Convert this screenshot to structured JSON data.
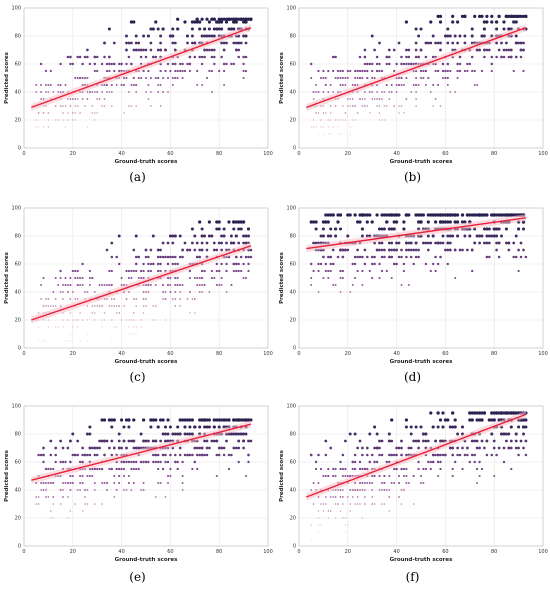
{
  "colors": {
    "low": "#f2b8c6",
    "mid": "#8a4c96",
    "high": "#2b2150",
    "trend": "#e8203a",
    "band": "#f5c0c8",
    "grid": "#e6e6e6"
  },
  "chart_data": [
    {
      "panel": "(a)",
      "type": "scatter",
      "xlabel": "Ground-truth scores",
      "ylabel": "Predicted scores",
      "xlim": [
        0,
        100
      ],
      "ylim": [
        0,
        100
      ],
      "xticks": [
        "0",
        "20",
        "40",
        "60",
        "80",
        "100"
      ],
      "yticks": [
        "0",
        "20",
        "40",
        "60",
        "80",
        "100"
      ],
      "trend": {
        "x": [
          3,
          93
        ],
        "y": [
          29,
          86
        ]
      },
      "cloud": {
        "xrange": [
          5,
          93
        ],
        "ymin": 15,
        "ymax": 92
      },
      "grid": true
    },
    {
      "panel": "(b)",
      "type": "scatter",
      "xlabel": "Ground-truth scores",
      "ylabel": "Predicted scores",
      "xlim": [
        0,
        100
      ],
      "ylim": [
        0,
        100
      ],
      "xticks": [
        "0",
        "20",
        "40",
        "60",
        "80",
        "100"
      ],
      "yticks": [
        "0",
        "20",
        "40",
        "60",
        "80",
        "100"
      ],
      "trend": {
        "x": [
          3,
          93
        ],
        "y": [
          29,
          86
        ]
      },
      "cloud": {
        "xrange": [
          5,
          93
        ],
        "ymin": 10,
        "ymax": 94
      },
      "grid": true
    },
    {
      "panel": "(c)",
      "type": "scatter",
      "xlabel": "Ground-truth scores",
      "ylabel": "Predicted scores",
      "xlim": [
        0,
        100
      ],
      "ylim": [
        0,
        100
      ],
      "xticks": [
        "0",
        "20",
        "40",
        "60",
        "80",
        "100"
      ],
      "yticks": [
        "0",
        "20",
        "40",
        "60",
        "80",
        "100"
      ],
      "trend": {
        "x": [
          3,
          93
        ],
        "y": [
          20,
          73
        ]
      },
      "cloud": {
        "xrange": [
          5,
          93
        ],
        "ymin": 5,
        "ymax": 90
      },
      "grid": true
    },
    {
      "panel": "(d)",
      "type": "scatter",
      "xlabel": "Ground-truth scores",
      "ylabel": "Predicted scores",
      "xlim": [
        0,
        100
      ],
      "ylim": [
        0,
        100
      ],
      "xticks": [
        "0",
        "20",
        "40",
        "60",
        "80",
        "100"
      ],
      "yticks": [
        "0",
        "20",
        "40",
        "60",
        "80",
        "100"
      ],
      "trend": {
        "x": [
          3,
          93
        ],
        "y": [
          71,
          93
        ]
      },
      "cloud": {
        "xrange": [
          5,
          93
        ],
        "ymin": 10,
        "ymax": 95
      },
      "grid": true
    },
    {
      "panel": "(e)",
      "type": "scatter",
      "xlabel": "Ground-truth scores",
      "ylabel": "Predicted scores",
      "xlim": [
        0,
        100
      ],
      "ylim": [
        0,
        100
      ],
      "xticks": [
        "0",
        "20",
        "40",
        "60",
        "80",
        "100"
      ],
      "yticks": [
        "0",
        "20",
        "40",
        "60",
        "80",
        "100"
      ],
      "trend": {
        "x": [
          3,
          93
        ],
        "y": [
          47,
          87
        ]
      },
      "cloud": {
        "xrange": [
          5,
          93
        ],
        "ymin": 5,
        "ymax": 90
      },
      "grid": true
    },
    {
      "panel": "(f)",
      "type": "scatter",
      "xlabel": "Ground-truth scores",
      "ylabel": "Predicted scores",
      "xlim": [
        0,
        100
      ],
      "ylim": [
        0,
        100
      ],
      "xticks": [
        "0",
        "20",
        "40",
        "60",
        "80",
        "100"
      ],
      "yticks": [
        "0",
        "20",
        "40",
        "60",
        "80",
        "100"
      ],
      "trend": {
        "x": [
          3,
          93
        ],
        "y": [
          35,
          94
        ]
      },
      "cloud": {
        "xrange": [
          5,
          93
        ],
        "ymin": 5,
        "ymax": 95
      },
      "grid": true
    }
  ]
}
